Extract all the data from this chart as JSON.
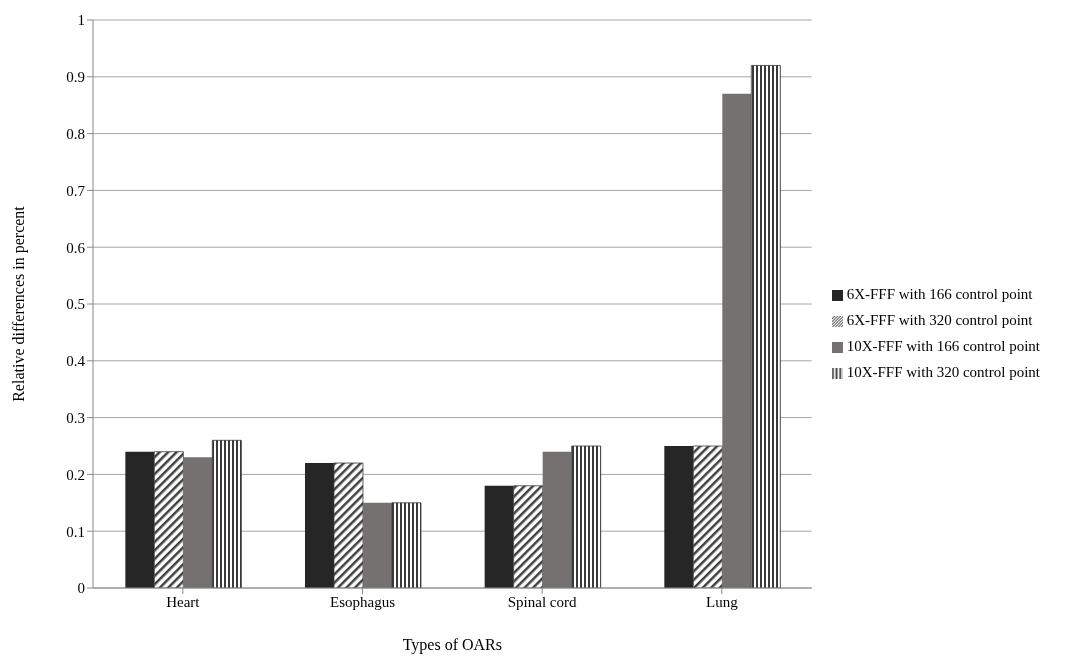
{
  "chart_data": {
    "type": "bar",
    "xlabel": "Types of OARs",
    "ylabel": "Relative differences in percent",
    "categories": [
      "Heart",
      "Esophagus",
      "Spinal cord",
      "Lung"
    ],
    "series": [
      {
        "name": "6X-FFF with 166 control point",
        "color": "#262626",
        "values": [
          0.24,
          0.22,
          0.18,
          0.25
        ]
      },
      {
        "name": "6X-FFF with 320 control point",
        "color": "#404040",
        "values": [
          0.24,
          0.22,
          0.18,
          0.25
        ]
      },
      {
        "name": "10X-FFF with 166 control point",
        "color": "#767171",
        "values": [
          0.23,
          0.15,
          0.24,
          0.87
        ]
      },
      {
        "name": "10X-FFF with 320 control point",
        "color": "#3a3a3a",
        "values": [
          0.26,
          0.15,
          0.25,
          0.92
        ]
      }
    ],
    "ylim": [
      0,
      1
    ],
    "yticks": [
      0,
      0.1,
      0.2,
      0.3,
      0.4,
      0.5,
      0.6,
      0.7,
      0.8,
      0.9,
      1
    ],
    "grid": "y",
    "legend": "right"
  }
}
